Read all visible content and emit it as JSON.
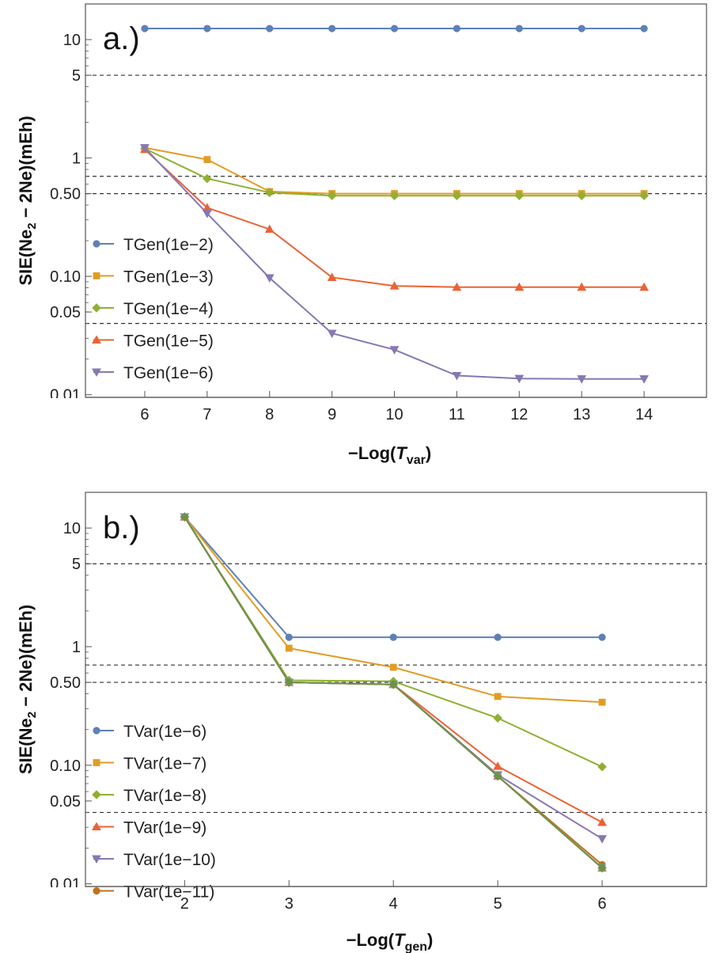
{
  "chart_data": [
    {
      "type": "line",
      "panel_label": "a.)",
      "title": "",
      "ylabel_parts": [
        "SIE(Ne",
        "2",
        " − 2Ne)(mEh)"
      ],
      "xlabel_parts": [
        "−Log(",
        "T",
        "var",
        ")"
      ],
      "x_scale": "linear",
      "y_scale": "log",
      "xlim": [
        5.05,
        15.0
      ],
      "ylim": [
        0.0095,
        20
      ],
      "x_ticks": [
        6,
        7,
        8,
        9,
        10,
        11,
        12,
        13,
        14
      ],
      "y_ticks": [
        {
          "value": 0.01,
          "label": "0.01"
        },
        {
          "value": 0.05,
          "label": "0.05"
        },
        {
          "value": 0.1,
          "label": "0.10"
        },
        {
          "value": 0.5,
          "label": "0.50"
        },
        {
          "value": 1,
          "label": "1"
        },
        {
          "value": 5,
          "label": "5"
        },
        {
          "value": 10,
          "label": "10"
        }
      ],
      "reference_lines": [
        5,
        0.7,
        0.5,
        0.04
      ],
      "legend_position": "left",
      "x": [
        6,
        7,
        8,
        9,
        10,
        11,
        12,
        13,
        14
      ],
      "series": [
        {
          "name": "TGen(1e−2)",
          "color": "#5e81b5",
          "marker": "circle",
          "values": [
            12.4,
            12.4,
            12.4,
            12.4,
            12.4,
            12.4,
            12.4,
            12.4,
            12.4
          ]
        },
        {
          "name": "TGen(1e−3)",
          "color": "#e19c24",
          "marker": "square",
          "values": [
            1.22,
            0.97,
            0.52,
            0.5,
            0.5,
            0.5,
            0.5,
            0.5,
            0.5
          ]
        },
        {
          "name": "TGen(1e−4)",
          "color": "#8fb032",
          "marker": "diamond",
          "values": [
            1.2,
            0.67,
            0.51,
            0.48,
            0.48,
            0.48,
            0.48,
            0.48,
            0.48
          ]
        },
        {
          "name": "TGen(1e−5)",
          "color": "#eb6235",
          "marker": "triangle-up",
          "values": [
            1.18,
            0.38,
            0.25,
            0.098,
            0.083,
            0.081,
            0.081,
            0.081,
            0.081
          ]
        },
        {
          "name": "TGen(1e−6)",
          "color": "#8778b3",
          "marker": "triangle-down",
          "values": [
            1.22,
            0.34,
            0.097,
            0.033,
            0.024,
            0.0145,
            0.0137,
            0.0136,
            0.0136
          ]
        }
      ]
    },
    {
      "type": "line",
      "panel_label": "b.)",
      "title": "",
      "ylabel_parts": [
        "SIE(Ne",
        "2",
        " − 2Ne)(mEh)"
      ],
      "xlabel_parts": [
        "−Log(",
        "T",
        "gen",
        ")"
      ],
      "x_scale": "linear",
      "y_scale": "log",
      "xlim": [
        1.05,
        7.0
      ],
      "ylim": [
        0.0095,
        20
      ],
      "x_ticks": [
        2,
        3,
        4,
        5,
        6
      ],
      "y_ticks": [
        {
          "value": 0.01,
          "label": "0.01"
        },
        {
          "value": 0.05,
          "label": "0.05"
        },
        {
          "value": 0.1,
          "label": "0.10"
        },
        {
          "value": 0.5,
          "label": "0.50"
        },
        {
          "value": 1,
          "label": "1"
        },
        {
          "value": 5,
          "label": "5"
        },
        {
          "value": 10,
          "label": "10"
        }
      ],
      "reference_lines": [
        5,
        0.7,
        0.5,
        0.04
      ],
      "legend_position": "left",
      "x": [
        2,
        3,
        4,
        5,
        6
      ],
      "series": [
        {
          "name": "TVar(1e−6)",
          "color": "#5e81b5",
          "marker": "circle",
          "values": [
            12.4,
            1.2,
            1.2,
            1.2,
            1.2
          ]
        },
        {
          "name": "TVar(1e−7)",
          "color": "#e19c24",
          "marker": "square",
          "values": [
            12.4,
            0.97,
            0.67,
            0.38,
            0.34
          ]
        },
        {
          "name": "TVar(1e−8)",
          "color": "#8fb032",
          "marker": "diamond",
          "values": [
            12.4,
            0.52,
            0.51,
            0.25,
            0.097
          ]
        },
        {
          "name": "TVar(1e−9)",
          "color": "#eb6235",
          "marker": "triangle-up",
          "values": [
            12.4,
            0.5,
            0.48,
            0.098,
            0.033
          ]
        },
        {
          "name": "TVar(1e−10)",
          "color": "#8778b3",
          "marker": "triangle-down",
          "values": [
            12.4,
            0.5,
            0.48,
            0.083,
            0.024
          ]
        },
        {
          "name": "TVar(1e−11)",
          "color": "#c56e1a",
          "marker": "circle",
          "values": [
            12.4,
            0.5,
            0.48,
            0.081,
            0.0145
          ]
        },
        {
          "name": "",
          "color": "#5d9ec7",
          "marker": "square",
          "values": [
            12.4,
            0.5,
            0.48,
            0.081,
            0.0137
          ]
        },
        {
          "name": "",
          "color": "#c47b8e",
          "marker": "triangle-up",
          "values": [
            12.4,
            0.5,
            0.48,
            0.081,
            0.0136
          ]
        },
        {
          "name": "",
          "color": "#6f9343",
          "marker": "diamond",
          "values": [
            12.4,
            0.5,
            0.48,
            0.081,
            0.0136
          ]
        }
      ]
    }
  ]
}
